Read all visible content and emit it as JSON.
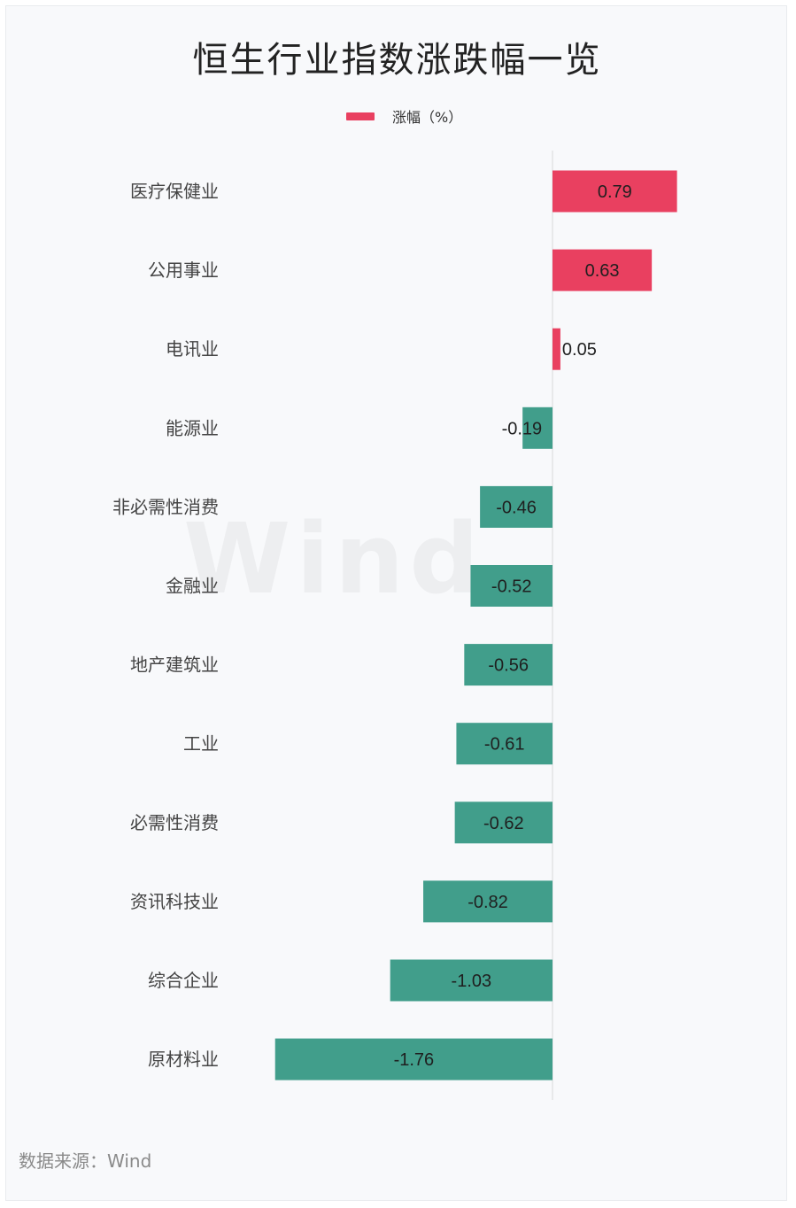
{
  "title": "恒生行业指数涨跌幅一览",
  "legend": {
    "label": "涨幅（%）"
  },
  "watermark": "Wind",
  "source": {
    "label": "数据来源：",
    "value": "Wind"
  },
  "colors": {
    "positive": "#e94060",
    "negative": "#419e8b",
    "axis": "#d9d9d9"
  },
  "chart_data": {
    "type": "bar",
    "orientation": "horizontal",
    "title": "恒生行业指数涨跌幅一览",
    "categories": [
      "医疗保健业",
      "公用事业",
      "电讯业",
      "能源业",
      "非必需性消费",
      "金融业",
      "地产建筑业",
      "工业",
      "必需性消费",
      "资讯科技业",
      "综合企业",
      "原材料业"
    ],
    "series": [
      {
        "name": "涨幅（%）",
        "values": [
          0.79,
          0.63,
          0.05,
          -0.19,
          -0.46,
          -0.52,
          -0.56,
          -0.61,
          -0.62,
          -0.82,
          -1.03,
          -1.76
        ]
      }
    ],
    "xlim": [
      -1.76,
      0.79
    ],
    "grid": false,
    "legend_position": "top-center",
    "data_labels": true
  }
}
